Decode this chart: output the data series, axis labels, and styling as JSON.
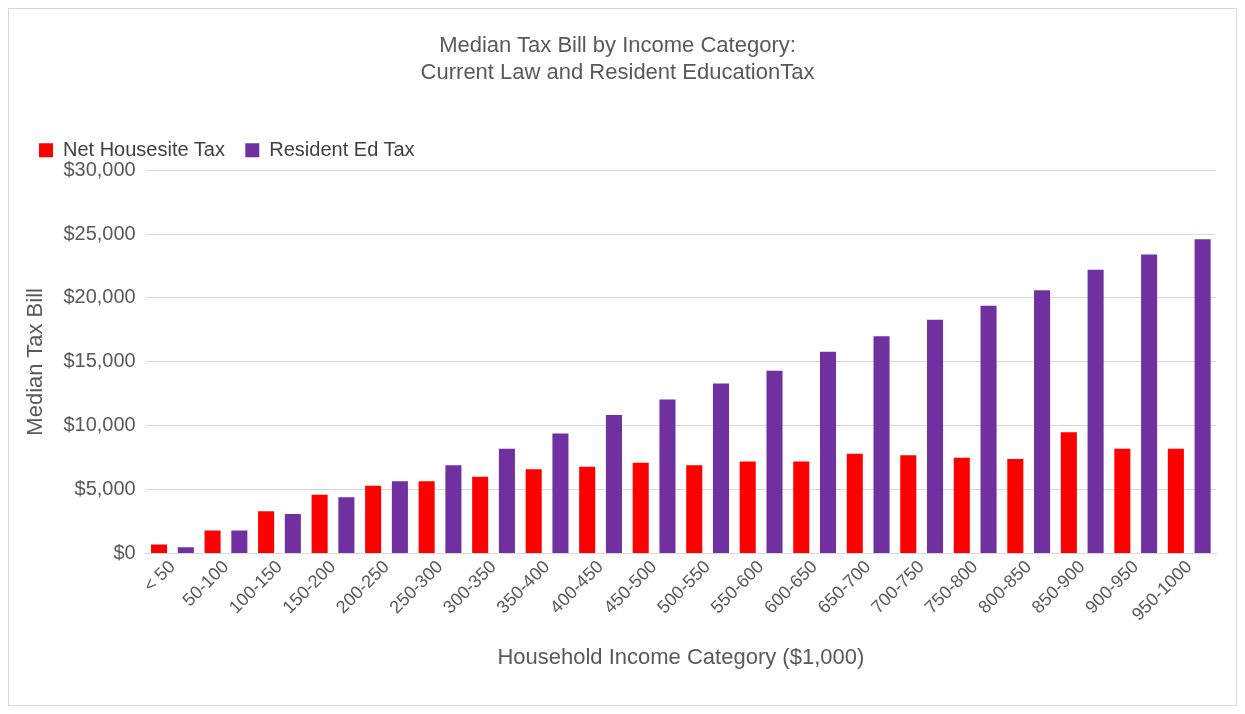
{
  "chart_data": {
    "type": "bar",
    "title": [
      "Median Tax Bill by Income Category:",
      "Current Law and Resident EducationTax"
    ],
    "xlabel": "Household Income Category ($1,000)",
    "ylabel": "Median Tax Bill",
    "categories": [
      "< 50",
      "50-100",
      "100-150",
      "150-200",
      "200-250",
      "250-300",
      "300-350",
      "350-400",
      "400-450",
      "450-500",
      "500-550",
      "550-600",
      "600-650",
      "650-700",
      "700-750",
      "750-800",
      "800-850",
      "850-900",
      "900-950",
      "950-1000"
    ],
    "series": [
      {
        "name": "Net Housesite Tax",
        "color": "#ff0000",
        "values": [
          700,
          1800,
          3300,
          4600,
          5300,
          5650,
          6000,
          6600,
          6800,
          7100,
          6900,
          7200,
          7200,
          7800,
          7700,
          7500,
          7400,
          9500,
          8200,
          8200
        ]
      },
      {
        "name": "Resident Ed Tax",
        "color": "#7030a0",
        "values": [
          500,
          1800,
          3100,
          4400,
          5650,
          6900,
          8200,
          9400,
          10850,
          12050,
          13300,
          14300,
          15800,
          17000,
          18300,
          19400,
          20600,
          22200,
          23400,
          24600
        ]
      }
    ],
    "ylim": [
      0,
      30000
    ],
    "yticks": [
      {
        "value": 0,
        "label": "$0"
      },
      {
        "value": 5000,
        "label": "$5,000"
      },
      {
        "value": 10000,
        "label": "$10,000"
      },
      {
        "value": 15000,
        "label": "$15,000"
      },
      {
        "value": 20000,
        "label": "$20,000"
      },
      {
        "value": 25000,
        "label": "$25,000"
      },
      {
        "value": 30000,
        "label": "$30,000"
      }
    ],
    "grid": "y",
    "legend": "top left"
  }
}
